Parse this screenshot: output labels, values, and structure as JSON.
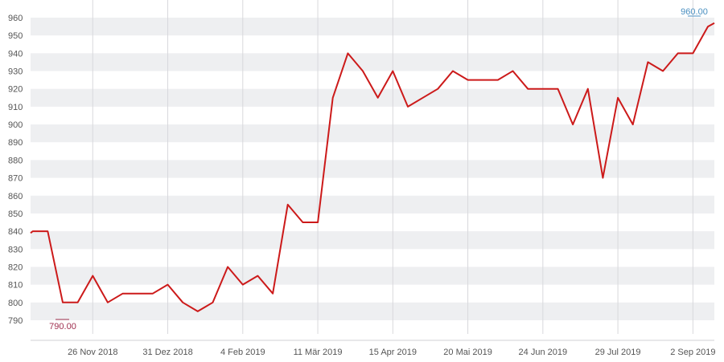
{
  "chart_data": {
    "type": "line",
    "title": "",
    "xlabel": "",
    "ylabel": "",
    "ylim": [
      790,
      960
    ],
    "yticks": [
      790,
      800,
      810,
      820,
      830,
      840,
      850,
      860,
      870,
      880,
      890,
      900,
      910,
      920,
      930,
      940,
      950,
      960
    ],
    "xlim": [
      "2018-10-28",
      "2019-09-12"
    ],
    "xticks": [
      {
        "date": "2018-11-26",
        "label": "26 Nov 2018"
      },
      {
        "date": "2018-12-31",
        "label": "31 Dez 2018"
      },
      {
        "date": "2019-02-04",
        "label": "4 Feb 2019"
      },
      {
        "date": "2019-03-11",
        "label": "11 Mär 2019"
      },
      {
        "date": "2019-04-15",
        "label": "15 Apr 2019"
      },
      {
        "date": "2019-05-20",
        "label": "20 Mai 2019"
      },
      {
        "date": "2019-06-24",
        "label": "24 Jun 2019"
      },
      {
        "date": "2019-07-29",
        "label": "29 Jul 2019"
      },
      {
        "date": "2019-09-02",
        "label": "2 Sep 2019"
      }
    ],
    "grid": "vertical lines at ticks, alternating horizontal bands",
    "colors": {
      "line": "#cc1a1a",
      "band": "#eeeff1",
      "grid": "#d8d8dc",
      "max_label": "#4a8fc0",
      "min_label": "#a03050",
      "tick_text": "#555555"
    },
    "series": [
      {
        "x": [
          "2018-10-28",
          "2018-10-29",
          "2018-11-05",
          "2018-11-12",
          "2018-11-19",
          "2018-11-26",
          "2018-12-03",
          "2018-12-10",
          "2018-12-17",
          "2018-12-24",
          "2018-12-31",
          "2019-01-07",
          "2019-01-14",
          "2019-01-21",
          "2019-01-28",
          "2019-02-04",
          "2019-02-11",
          "2019-02-18",
          "2019-02-25",
          "2019-03-04",
          "2019-03-11",
          "2019-03-18",
          "2019-03-25",
          "2019-04-01",
          "2019-04-08",
          "2019-04-15",
          "2019-04-22",
          "2019-04-29",
          "2019-05-06",
          "2019-05-13",
          "2019-05-20",
          "2019-05-27",
          "2019-06-03",
          "2019-06-10",
          "2019-06-17",
          "2019-06-24",
          "2019-07-01",
          "2019-07-08",
          "2019-07-15",
          "2019-07-22",
          "2019-07-29",
          "2019-08-05",
          "2019-08-12",
          "2019-08-19",
          "2019-08-26",
          "2019-09-02",
          "2019-09-09",
          "2019-09-12"
        ],
        "values": [
          839,
          840,
          840,
          800,
          800,
          815,
          800,
          805,
          805,
          805,
          810,
          800,
          795,
          800,
          820,
          810,
          815,
          805,
          855,
          845,
          845,
          915,
          940,
          930,
          915,
          930,
          910,
          915,
          920,
          930,
          925,
          925,
          925,
          930,
          920,
          920,
          920,
          900,
          920,
          870,
          915,
          900,
          935,
          930,
          940,
          940,
          955,
          957
        ]
      }
    ],
    "annotations": {
      "max_label": "960.00",
      "min_label": "790.00"
    }
  }
}
